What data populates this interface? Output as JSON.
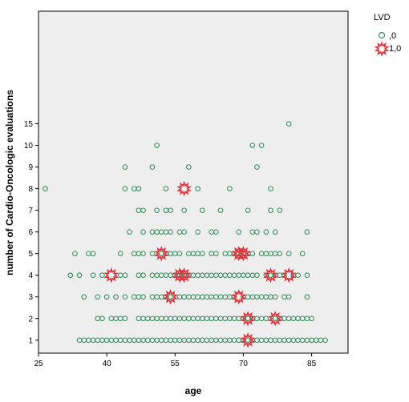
{
  "chart_data": {
    "type": "scatter",
    "title": "",
    "xlabel": "age",
    "ylabel": "number of Cardio-Oncologic evaluations",
    "xlim": [
      25,
      93
    ],
    "ylim": [
      0.4,
      16.2
    ],
    "x_ticks": [
      25,
      40,
      55,
      70,
      85
    ],
    "x_tick_labels": [
      "25",
      "40",
      "55",
      "70",
      "85"
    ],
    "y_ticks": [
      1,
      2,
      3,
      4,
      5,
      6,
      7,
      8,
      9,
      10,
      15
    ],
    "y_tick_labels": [
      "1",
      "2",
      "3",
      "4",
      "5",
      "6",
      "7",
      "8",
      "9",
      "10",
      "15"
    ],
    "y_positions": {
      "1": 1,
      "2": 2,
      "3": 3,
      "4": 4,
      "5": 5,
      "6": 6,
      "7": 7,
      "8": 8,
      "9": 9,
      "10": 10,
      "15": 11
    },
    "plot_background": "#eeeeee",
    "grid": false,
    "legend_placement": "right",
    "legend_title": "LVD",
    "series": [
      {
        "name": ",0",
        "marker": "circle",
        "color": "#2e8b57",
        "points": [
          [
            26.5,
            8
          ],
          [
            44,
            9
          ],
          [
            50,
            9
          ],
          [
            51,
            10
          ],
          [
            58,
            9
          ],
          [
            72,
            10
          ],
          [
            74,
            10
          ],
          [
            80,
            15
          ],
          [
            73,
            9
          ],
          [
            44,
            8
          ],
          [
            46,
            8
          ],
          [
            47,
            8
          ],
          [
            53,
            8
          ],
          [
            60,
            8
          ],
          [
            67,
            8
          ],
          [
            76,
            8
          ],
          [
            47,
            7
          ],
          [
            48,
            7
          ],
          [
            51,
            7
          ],
          [
            53,
            7
          ],
          [
            54,
            7
          ],
          [
            57,
            7
          ],
          [
            61,
            7
          ],
          [
            65,
            7
          ],
          [
            71,
            7
          ],
          [
            76,
            7
          ],
          [
            78,
            7
          ],
          [
            45,
            6
          ],
          [
            48,
            6
          ],
          [
            50,
            6
          ],
          [
            51,
            6
          ],
          [
            52,
            6
          ],
          [
            53,
            6
          ],
          [
            54,
            6
          ],
          [
            56,
            6
          ],
          [
            57,
            6
          ],
          [
            60,
            6
          ],
          [
            63,
            6
          ],
          [
            64,
            6
          ],
          [
            69,
            6
          ],
          [
            72,
            6
          ],
          [
            73,
            6
          ],
          [
            75,
            6
          ],
          [
            77,
            6
          ],
          [
            84,
            6
          ],
          [
            33,
            5
          ],
          [
            36,
            5
          ],
          [
            37,
            5
          ],
          [
            43,
            5
          ],
          [
            46,
            5
          ],
          [
            47,
            5
          ],
          [
            48,
            5
          ],
          [
            50,
            5
          ],
          [
            52,
            5
          ],
          [
            53,
            5
          ],
          [
            54,
            5
          ],
          [
            55,
            5
          ],
          [
            56,
            5
          ],
          [
            58,
            5
          ],
          [
            59,
            5
          ],
          [
            60,
            5
          ],
          [
            61,
            5
          ],
          [
            63,
            5
          ],
          [
            64,
            5
          ],
          [
            66,
            5
          ],
          [
            67,
            5
          ],
          [
            68,
            5
          ],
          [
            69,
            5
          ],
          [
            70,
            5
          ],
          [
            71,
            5
          ],
          [
            72,
            5
          ],
          [
            74,
            5
          ],
          [
            75,
            5
          ],
          [
            76,
            5
          ],
          [
            77,
            5
          ],
          [
            78,
            5
          ],
          [
            80,
            5
          ],
          [
            83,
            5
          ],
          [
            32,
            4
          ],
          [
            34,
            4
          ],
          [
            37,
            4
          ],
          [
            39,
            4
          ],
          [
            43,
            4
          ],
          [
            44,
            4
          ],
          [
            47,
            4
          ],
          [
            48,
            4
          ],
          [
            50,
            4
          ],
          [
            51,
            4
          ],
          [
            52,
            4
          ],
          [
            53,
            4
          ],
          [
            54,
            4
          ],
          [
            55,
            4
          ],
          [
            56,
            4
          ],
          [
            57,
            4
          ],
          [
            58,
            4
          ],
          [
            59,
            4
          ],
          [
            60,
            4
          ],
          [
            61,
            4
          ],
          [
            62,
            4
          ],
          [
            63,
            4
          ],
          [
            64,
            4
          ],
          [
            65,
            4
          ],
          [
            66,
            4
          ],
          [
            67,
            4
          ],
          [
            68,
            4
          ],
          [
            69,
            4
          ],
          [
            70,
            4
          ],
          [
            71,
            4
          ],
          [
            72,
            4
          ],
          [
            73,
            4
          ],
          [
            75,
            4
          ],
          [
            76,
            4
          ],
          [
            77,
            4
          ],
          [
            78,
            4
          ],
          [
            79,
            4
          ],
          [
            81,
            4
          ],
          [
            82,
            4
          ],
          [
            84,
            4
          ],
          [
            35,
            3
          ],
          [
            38,
            3
          ],
          [
            40,
            3
          ],
          [
            42,
            3
          ],
          [
            44,
            3
          ],
          [
            46,
            3
          ],
          [
            47,
            3
          ],
          [
            48,
            3
          ],
          [
            50,
            3
          ],
          [
            51,
            3
          ],
          [
            52,
            3
          ],
          [
            53,
            3
          ],
          [
            54,
            3
          ],
          [
            56,
            3
          ],
          [
            57,
            3
          ],
          [
            58,
            3
          ],
          [
            59,
            3
          ],
          [
            60,
            3
          ],
          [
            61,
            3
          ],
          [
            62,
            3
          ],
          [
            63,
            3
          ],
          [
            64,
            3
          ],
          [
            65,
            3
          ],
          [
            66,
            3
          ],
          [
            67,
            3
          ],
          [
            68,
            3
          ],
          [
            70,
            3
          ],
          [
            71,
            3
          ],
          [
            72,
            3
          ],
          [
            73,
            3
          ],
          [
            74,
            3
          ],
          [
            75,
            3
          ],
          [
            76,
            3
          ],
          [
            77,
            3
          ],
          [
            79,
            3
          ],
          [
            80,
            3
          ],
          [
            84,
            3
          ],
          [
            38,
            2
          ],
          [
            39,
            2
          ],
          [
            41,
            2
          ],
          [
            42,
            2
          ],
          [
            43,
            2
          ],
          [
            44,
            2
          ],
          [
            47,
            2
          ],
          [
            48,
            2
          ],
          [
            49,
            2
          ],
          [
            50,
            2
          ],
          [
            51,
            2
          ],
          [
            52,
            2
          ],
          [
            53,
            2
          ],
          [
            54,
            2
          ],
          [
            55,
            2
          ],
          [
            56,
            2
          ],
          [
            57,
            2
          ],
          [
            58,
            2
          ],
          [
            59,
            2
          ],
          [
            60,
            2
          ],
          [
            61,
            2
          ],
          [
            62,
            2
          ],
          [
            63,
            2
          ],
          [
            64,
            2
          ],
          [
            65,
            2
          ],
          [
            66,
            2
          ],
          [
            67,
            2
          ],
          [
            68,
            2
          ],
          [
            69,
            2
          ],
          [
            70,
            2
          ],
          [
            71,
            2
          ],
          [
            72,
            2
          ],
          [
            73,
            2
          ],
          [
            74,
            2
          ],
          [
            75,
            2
          ],
          [
            77,
            2
          ],
          [
            78,
            2
          ],
          [
            79,
            2
          ],
          [
            80,
            2
          ],
          [
            81,
            2
          ],
          [
            82,
            2
          ],
          [
            83,
            2
          ],
          [
            84,
            2
          ],
          [
            85,
            2
          ],
          [
            34,
            1
          ],
          [
            35,
            1
          ],
          [
            36,
            1
          ],
          [
            37,
            1
          ],
          [
            38,
            1
          ],
          [
            39,
            1
          ],
          [
            40,
            1
          ],
          [
            41,
            1
          ],
          [
            42,
            1
          ],
          [
            43,
            1
          ],
          [
            44,
            1
          ],
          [
            45,
            1
          ],
          [
            46,
            1
          ],
          [
            47,
            1
          ],
          [
            48,
            1
          ],
          [
            49,
            1
          ],
          [
            50,
            1
          ],
          [
            51,
            1
          ],
          [
            52,
            1
          ],
          [
            53,
            1
          ],
          [
            54,
            1
          ],
          [
            55,
            1
          ],
          [
            56,
            1
          ],
          [
            57,
            1
          ],
          [
            58,
            1
          ],
          [
            59,
            1
          ],
          [
            60,
            1
          ],
          [
            61,
            1
          ],
          [
            62,
            1
          ],
          [
            63,
            1
          ],
          [
            64,
            1
          ],
          [
            65,
            1
          ],
          [
            66,
            1
          ],
          [
            67,
            1
          ],
          [
            68,
            1
          ],
          [
            69,
            1
          ],
          [
            70,
            1
          ],
          [
            71,
            1
          ],
          [
            72,
            1
          ],
          [
            73,
            1
          ],
          [
            74,
            1
          ],
          [
            75,
            1
          ],
          [
            76,
            1
          ],
          [
            77,
            1
          ],
          [
            78,
            1
          ],
          [
            79,
            1
          ],
          [
            80,
            1
          ],
          [
            81,
            1
          ],
          [
            82,
            1
          ],
          [
            83,
            1
          ],
          [
            84,
            1
          ],
          [
            85,
            1
          ],
          [
            86,
            1
          ],
          [
            87,
            1
          ],
          [
            88,
            1
          ]
        ]
      },
      {
        "name": "1,0",
        "marker": "star",
        "color": "#e0303a",
        "points": [
          [
            57,
            8
          ],
          [
            52,
            5
          ],
          [
            69,
            5
          ],
          [
            70,
            5
          ],
          [
            41,
            4
          ],
          [
            56,
            4
          ],
          [
            57,
            4
          ],
          [
            76,
            4
          ],
          [
            80,
            4
          ],
          [
            54,
            3
          ],
          [
            69,
            3
          ],
          [
            71,
            2
          ],
          [
            77,
            2
          ],
          [
            71,
            1
          ]
        ]
      }
    ]
  }
}
